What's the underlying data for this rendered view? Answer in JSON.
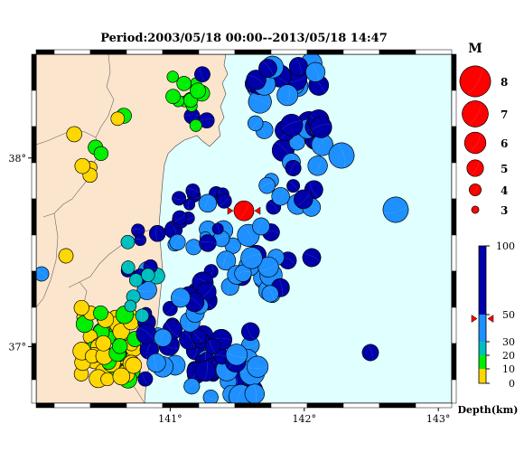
{
  "title": "Period:2003/05/18 00:00--2013/05/18 14:47",
  "map": {
    "lon_range": [
      140.0,
      143.1
    ],
    "lat_range": [
      36.7,
      38.55
    ],
    "x_ticks": [
      {
        "value": 141,
        "label": "141°"
      },
      {
        "value": 142,
        "label": "142°"
      },
      {
        "value": 143,
        "label": "143°"
      }
    ],
    "y_ticks": [
      {
        "value": 37,
        "label": "37°"
      },
      {
        "value": 38,
        "label": "38°"
      }
    ],
    "land_color": "#fce5cd",
    "sea_color": "#e0ffff",
    "main_event": {
      "lon": 141.55,
      "lat": 37.72,
      "color": "#ff0000"
    }
  },
  "magnitude_legend": {
    "title": "M",
    "items": [
      {
        "label": "8",
        "m": 8
      },
      {
        "label": "7",
        "m": 7
      },
      {
        "label": "6",
        "m": 6
      },
      {
        "label": "5",
        "m": 5
      },
      {
        "label": "4",
        "m": 4
      },
      {
        "label": "3",
        "m": 3
      }
    ]
  },
  "depth_legend": {
    "title": "Depth(km)",
    "range": [
      0,
      100
    ],
    "ticks": [
      {
        "value": 100,
        "label": "100"
      },
      {
        "value": 50,
        "label": "50"
      },
      {
        "value": 30,
        "label": "30"
      },
      {
        "value": 20,
        "label": "20"
      },
      {
        "value": 10,
        "label": "10"
      },
      {
        "value": 0,
        "label": "0"
      }
    ],
    "bands": [
      {
        "from": 0,
        "to": 10,
        "color": "#ffd700"
      },
      {
        "from": 10,
        "to": 20,
        "color": "#00ee00"
      },
      {
        "from": 20,
        "to": 30,
        "color": "#00bfbf"
      },
      {
        "from": 30,
        "to": 50,
        "color": "#1e90ff"
      },
      {
        "from": 50,
        "to": 100,
        "color": "#0000aa"
      }
    ],
    "marker_depth": 47
  },
  "colors": {
    "shallow": "#ffd700",
    "green": "#00ee00",
    "cyan": "#00bfbf",
    "mid": "#1e90ff",
    "deep": "#0000aa",
    "main": "#ff0000"
  }
}
